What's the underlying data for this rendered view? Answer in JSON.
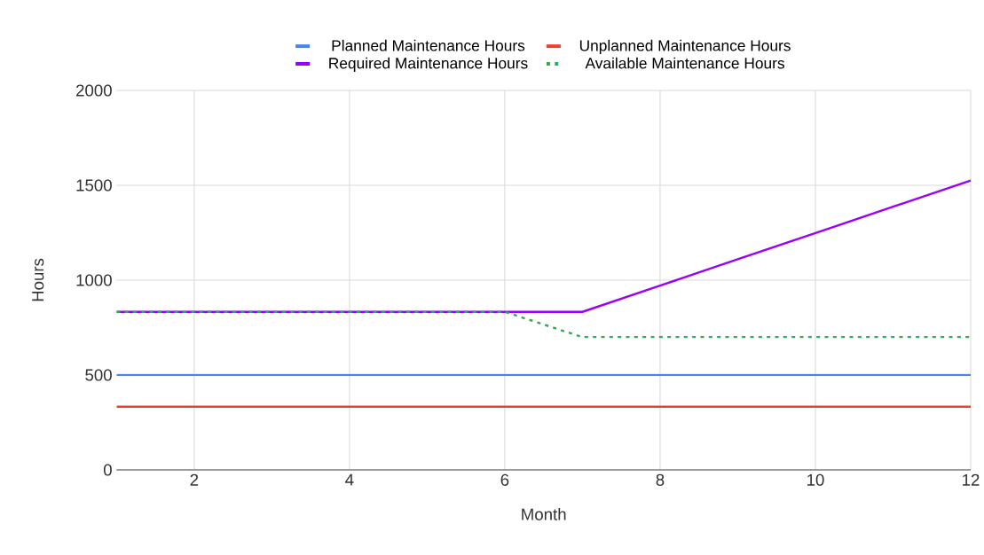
{
  "chart_data": {
    "type": "line",
    "xlabel": "Month",
    "ylabel": "Hours",
    "x": [
      1,
      2,
      3,
      4,
      5,
      6,
      7,
      8,
      9,
      10,
      11,
      12
    ],
    "xlim": [
      1,
      12
    ],
    "xticks": [
      2,
      4,
      6,
      8,
      10,
      12
    ],
    "ylim": [
      0,
      2000
    ],
    "yticks": [
      0,
      500,
      1000,
      1500,
      2000
    ],
    "grid": true,
    "legend": "top",
    "marker": "none",
    "series": [
      {
        "name": "Planned Maintenance Hours",
        "color": "#4285f4",
        "line_style": "solid",
        "values": [
          500,
          500,
          500,
          500,
          500,
          500,
          500,
          500,
          500,
          500,
          500,
          500
        ]
      },
      {
        "name": "Unplanned Maintenance Hours",
        "color": "#ea4335",
        "line_style": "solid",
        "values": [
          333,
          333,
          333,
          333,
          333,
          333,
          333,
          333,
          333,
          333,
          333,
          333
        ]
      },
      {
        "name": "Required Maintenance Hours",
        "color": "#9900ff",
        "line_style": "solid",
        "values": [
          833,
          833,
          833,
          833,
          833,
          833,
          833,
          971,
          1110,
          1248,
          1387,
          1525
        ]
      },
      {
        "name": "Available Maintenance Hours",
        "color": "#34a853",
        "line_style": "dotted",
        "values": [
          833,
          833,
          833,
          833,
          833,
          833,
          700,
          700,
          700,
          700,
          700,
          700
        ]
      }
    ]
  }
}
